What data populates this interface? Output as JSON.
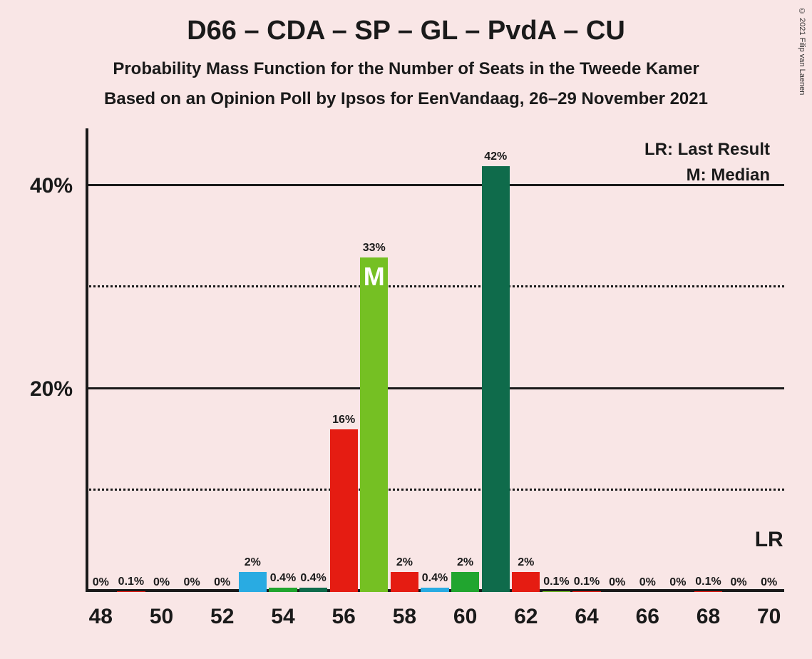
{
  "title": "D66 – CDA – SP – GL – PvdA – CU",
  "title_fontsize": 38,
  "subtitle1": "Probability Mass Function for the Number of Seats in the Tweede Kamer",
  "subtitle2": "Based on an Opinion Poll by Ipsos for EenVandaag, 26–29 November 2021",
  "subtitle_fontsize": 24,
  "copyright": "© 2021 Filip van Laenen",
  "legend_lr": "LR: Last Result",
  "legend_m": "M: Median",
  "legend_fontsize": 24,
  "lr_label": "LR",
  "lr_fontsize": 30,
  "lr_at_x": 70,
  "median_label": "M",
  "median_fontsize": 36,
  "median_at_x": 57,
  "background_color": "#f9e6e6",
  "text_color": "#1a1a1a",
  "chart": {
    "type": "bar",
    "xmin": 47.5,
    "xmax": 70.5,
    "ymin": 0,
    "ymax": 45,
    "x_ticks": [
      48,
      50,
      52,
      54,
      56,
      58,
      60,
      62,
      64,
      66,
      68,
      70
    ],
    "x_tick_fontsize": 30,
    "y_ticks": [
      {
        "value": 20,
        "label": "20%"
      },
      {
        "value": 40,
        "label": "40%"
      }
    ],
    "y_tick_fontsize": 30,
    "gridlines": [
      {
        "value": 10,
        "style": "dotted"
      },
      {
        "value": 20,
        "style": "solid"
      },
      {
        "value": 30,
        "style": "dotted"
      },
      {
        "value": 40,
        "style": "solid"
      }
    ],
    "bar_width": 0.92,
    "bar_label_fontsize": 16,
    "bars": [
      {
        "x": 48,
        "value": 0,
        "label": "0%",
        "color": "#e51c12"
      },
      {
        "x": 49,
        "value": 0.1,
        "label": "0.1%",
        "color": "#e51c12"
      },
      {
        "x": 50,
        "value": 0,
        "label": "0%",
        "color": "#e51c12"
      },
      {
        "x": 51,
        "value": 0,
        "label": "0%",
        "color": "#e51c12"
      },
      {
        "x": 52,
        "value": 0,
        "label": "0%",
        "color": "#e51c12"
      },
      {
        "x": 53,
        "value": 2,
        "label": "2%",
        "color": "#29abe2"
      },
      {
        "x": 54,
        "value": 0.4,
        "label": "0.4%",
        "color": "#21a52f"
      },
      {
        "x": 55,
        "value": 0.4,
        "label": "0.4%",
        "color": "#0f6b4b"
      },
      {
        "x": 56,
        "value": 16,
        "label": "16%",
        "color": "#e51c12"
      },
      {
        "x": 57,
        "value": 33,
        "label": "33%",
        "color": "#75c023"
      },
      {
        "x": 58,
        "value": 2,
        "label": "2%",
        "color": "#e51c12"
      },
      {
        "x": 59,
        "value": 0.4,
        "label": "0.4%",
        "color": "#29abe2"
      },
      {
        "x": 60,
        "value": 2,
        "label": "2%",
        "color": "#21a52f"
      },
      {
        "x": 61,
        "value": 42,
        "label": "42%",
        "color": "#0f6b4b"
      },
      {
        "x": 62,
        "value": 2,
        "label": "2%",
        "color": "#e51c12"
      },
      {
        "x": 63,
        "value": 0.1,
        "label": "0.1%",
        "color": "#75c023"
      },
      {
        "x": 64,
        "value": 0.1,
        "label": "0.1%",
        "color": "#e51c12"
      },
      {
        "x": 65,
        "value": 0,
        "label": "0%",
        "color": "#29abe2"
      },
      {
        "x": 66,
        "value": 0,
        "label": "0%",
        "color": "#21a52f"
      },
      {
        "x": 67,
        "value": 0,
        "label": "0%",
        "color": "#0f6b4b"
      },
      {
        "x": 68,
        "value": 0.1,
        "label": "0.1%",
        "color": "#e51c12"
      },
      {
        "x": 69,
        "value": 0,
        "label": "0%",
        "color": "#75c023"
      },
      {
        "x": 70,
        "value": 0,
        "label": "0%",
        "color": "#e51c12"
      }
    ]
  }
}
